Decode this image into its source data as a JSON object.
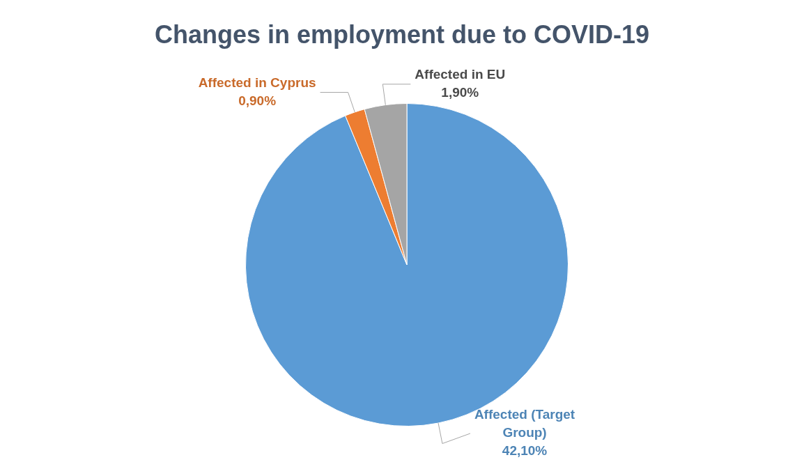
{
  "chart_data": {
    "type": "pie",
    "title": "Changes in employment due to COVID-19",
    "categories": [
      "Affected (Target Group)",
      "Affected in Cyprus",
      "Affected in EU"
    ],
    "values": [
      42.1,
      0.9,
      1.9
    ],
    "colors": [
      "#5b9bd5",
      "#ed7d31",
      "#a5a5a5"
    ],
    "value_labels": [
      "42,10%",
      "0,90%",
      "1,90%"
    ],
    "legend": false
  }
}
